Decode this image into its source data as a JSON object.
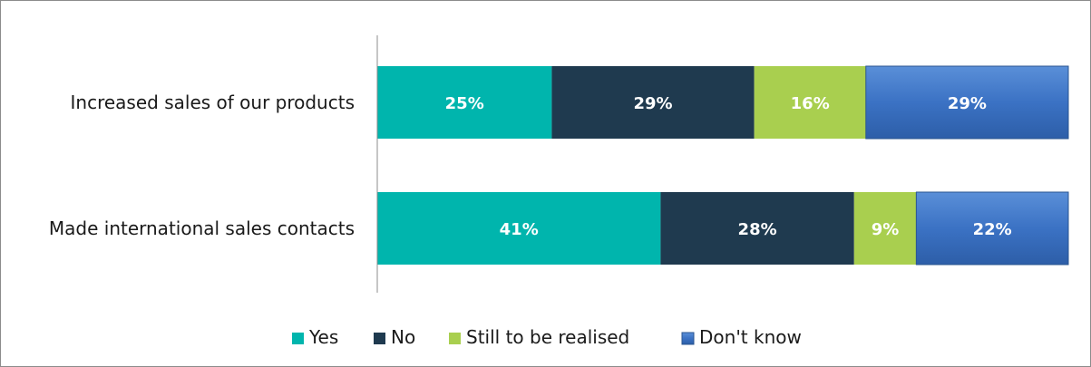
{
  "chart_data": {
    "type": "bar",
    "orientation": "horizontal",
    "stacked": true,
    "percent": true,
    "categories": [
      "Increased sales of our products",
      "Made international sales contacts"
    ],
    "series": [
      {
        "name": "Yes",
        "values": [
          25,
          41
        ],
        "labels": [
          "25%",
          "41%"
        ],
        "color": "#00b5ad"
      },
      {
        "name": "No",
        "values": [
          29,
          28
        ],
        "labels": [
          "29%",
          "28%"
        ],
        "color": "#1f3a4f"
      },
      {
        "name": "Still to be realised",
        "values": [
          16,
          9
        ],
        "labels": [
          "16%",
          "9%"
        ],
        "color": "#a9cf4f"
      },
      {
        "name": "Don't know",
        "values": [
          29,
          22
        ],
        "labels": [
          "29%",
          "22%"
        ],
        "color": "#3b72c4"
      }
    ],
    "xlim": [
      0,
      100
    ],
    "grid": false,
    "legend_position": "bottom"
  }
}
